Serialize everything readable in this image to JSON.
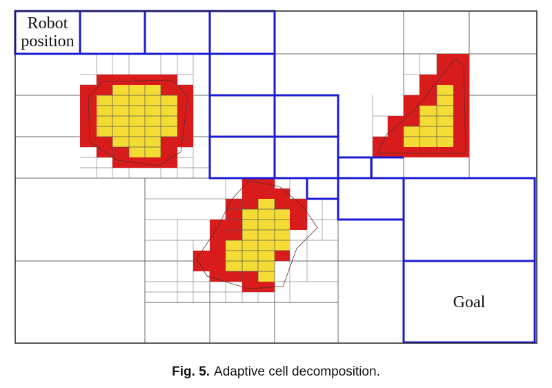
{
  "labels": {
    "robot_line1": "Robot",
    "robot_line2": "position",
    "goal": "Goal"
  },
  "caption": {
    "number": "Fig. 5.",
    "text": "Adaptive cell decomposition."
  },
  "colors": {
    "path": "#1a1ad6",
    "obstacle_inner": "#f4dc34",
    "obstacle_border": "#d81c1c",
    "grid": "#666666",
    "frame": "#222222"
  },
  "cells": {
    "free_path": 17,
    "obstacles": 3
  }
}
